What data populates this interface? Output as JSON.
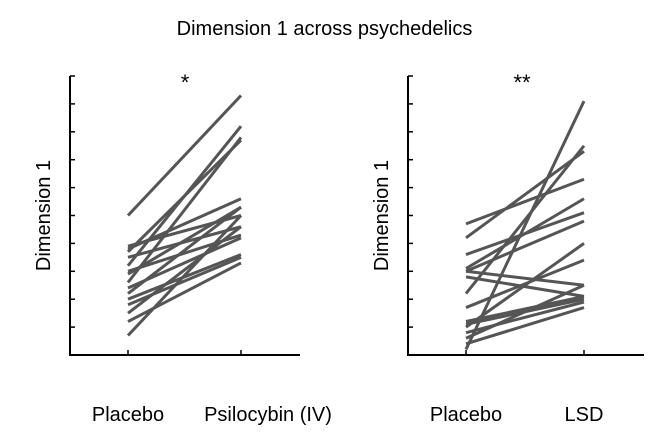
{
  "figure_title": "Dimension 1 across psychedelics",
  "chart_data": [
    {
      "type": "line",
      "title": "",
      "significance": "*",
      "ylabel": "Dimension 1",
      "xlabel": "",
      "categories": [
        "Placebo",
        "Psilocybin (IV)"
      ],
      "series_color": "#555555",
      "ylim": [
        0,
        10
      ],
      "yticks": [
        0,
        1,
        2,
        3,
        4,
        5,
        6,
        7,
        8,
        9,
        10
      ],
      "grid": false,
      "legend": "none",
      "pairs": [
        [
          5.0,
          9.3
        ],
        [
          3.8,
          5.6
        ],
        [
          3.9,
          5.0
        ],
        [
          3.7,
          7.7
        ],
        [
          3.5,
          4.6
        ],
        [
          3.2,
          8.2
        ],
        [
          3.0,
          4.3
        ],
        [
          2.9,
          5.3
        ],
        [
          2.6,
          7.8
        ],
        [
          2.4,
          4.2
        ],
        [
          2.2,
          5.3
        ],
        [
          2.0,
          3.6
        ],
        [
          1.8,
          3.5
        ],
        [
          1.5,
          4.6
        ],
        [
          1.2,
          3.3
        ],
        [
          0.7,
          5.0
        ]
      ]
    },
    {
      "type": "line",
      "title": "",
      "significance": "**",
      "ylabel": "Dimension 1",
      "xlabel": "",
      "categories": [
        "Placebo",
        "LSD"
      ],
      "series_color": "#555555",
      "ylim": [
        0,
        10
      ],
      "yticks": [
        0,
        1,
        2,
        3,
        4,
        5,
        6,
        7,
        8,
        9,
        10
      ],
      "grid": false,
      "legend": "none",
      "pairs": [
        [
          4.7,
          6.3
        ],
        [
          4.2,
          7.3
        ],
        [
          3.6,
          5.1
        ],
        [
          3.1,
          5.6
        ],
        [
          3.0,
          4.8
        ],
        [
          3.0,
          2.5
        ],
        [
          2.8,
          2.1
        ],
        [
          2.2,
          7.5
        ],
        [
          1.7,
          3.4
        ],
        [
          1.1,
          2.0
        ],
        [
          1.0,
          4.0
        ],
        [
          0.8,
          1.9
        ],
        [
          0.6,
          2.5
        ],
        [
          0.4,
          1.7
        ],
        [
          0.2,
          9.1
        ],
        [
          1.2,
          2.1
        ]
      ]
    }
  ]
}
